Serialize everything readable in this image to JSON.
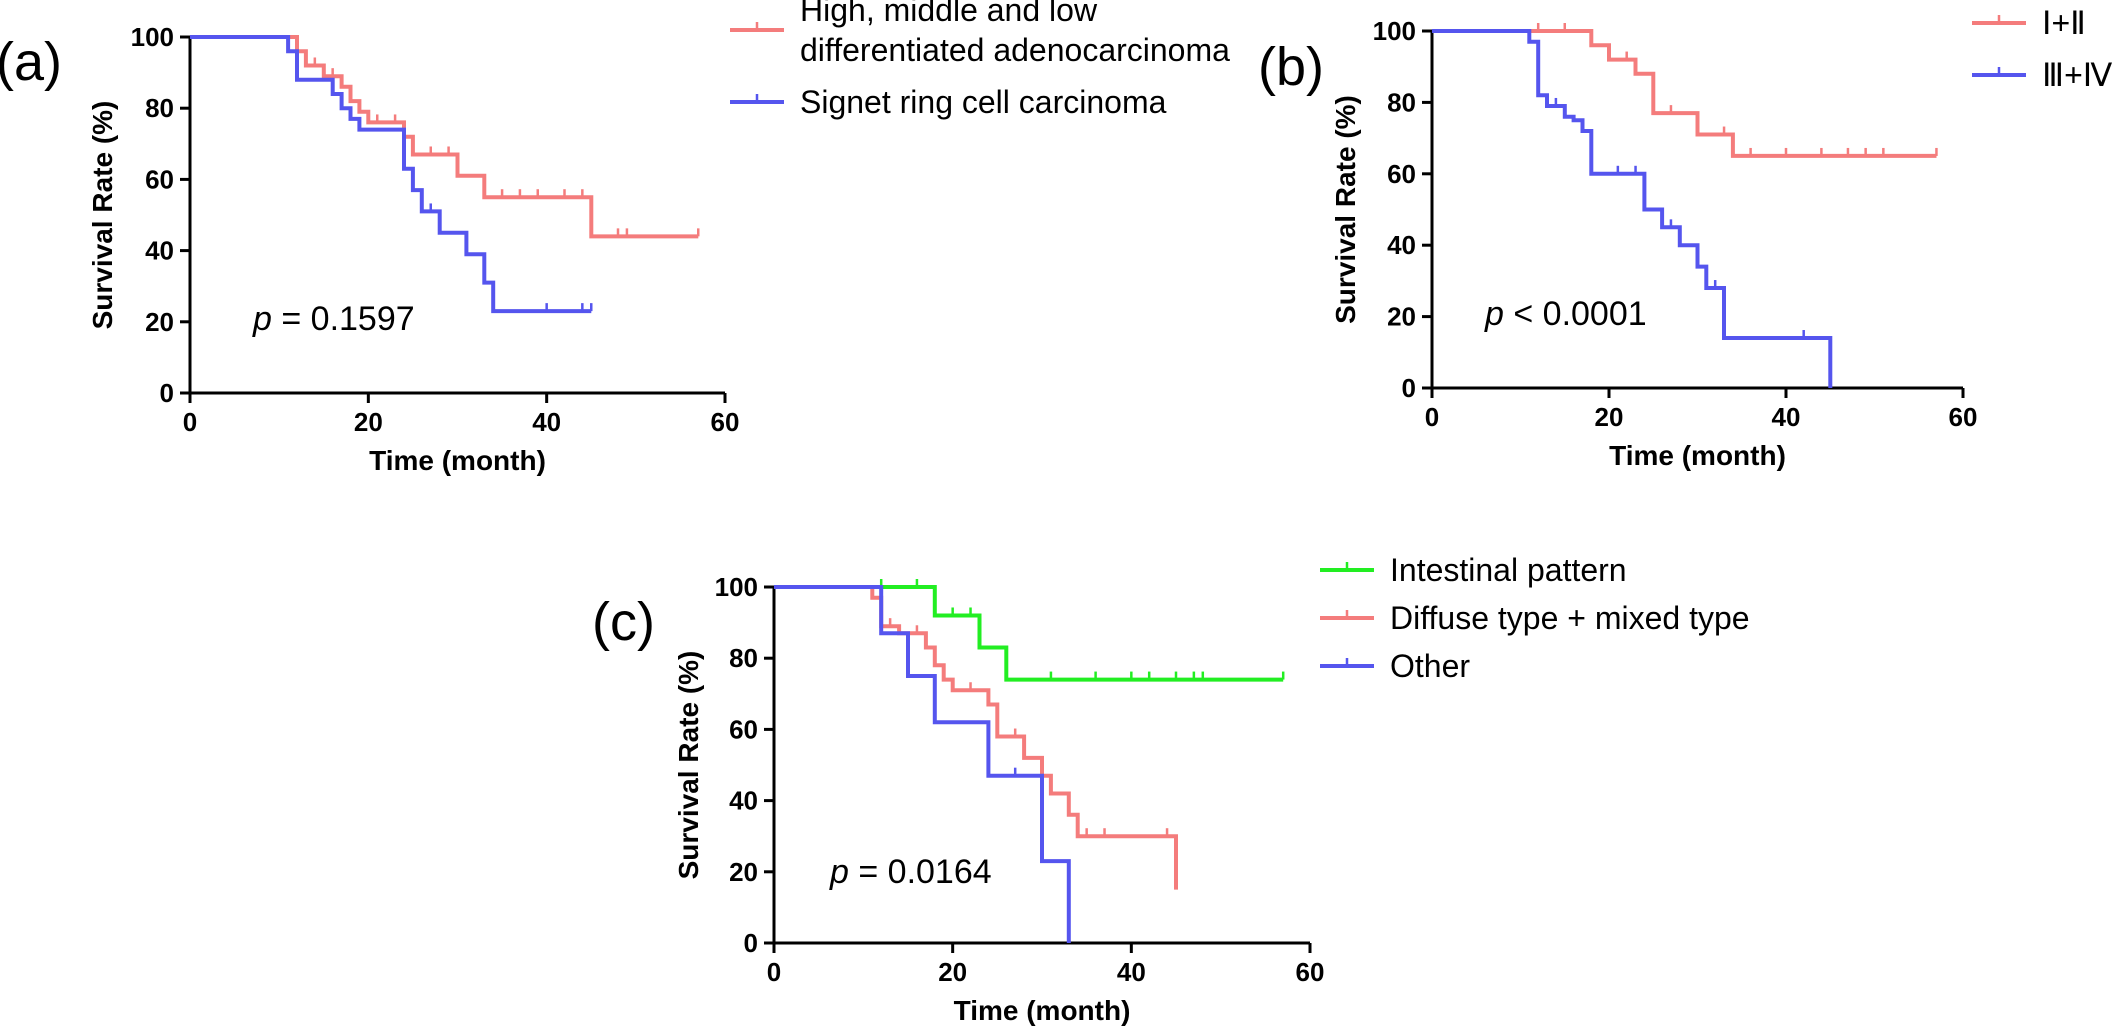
{
  "colors": {
    "red": "#f47c7c",
    "blue": "#5555ee",
    "green": "#22ee22",
    "axis": "#000000"
  },
  "chart_data": [
    {
      "type": "line",
      "panel_label": "(a)",
      "xlabel": "Time (month)",
      "ylabel": "Survival Rate (%)",
      "xlim": [
        0,
        60
      ],
      "ylim": [
        0,
        100
      ],
      "x_ticks": [
        "0",
        "20",
        "40",
        "60"
      ],
      "y_ticks": [
        "0",
        "20",
        "40",
        "60",
        "80",
        "100"
      ],
      "p_symbol": "p",
      "p_rest": " = 0.1597",
      "legend": {
        "placement": "right"
      },
      "series": [
        {
          "name_lines": [
            "High, middle and low",
            "differentiated adenocarcinoma"
          ],
          "color": "red",
          "steps": [
            [
              0,
              100
            ],
            [
              12,
              100
            ],
            [
              12,
              96
            ],
            [
              13,
              96
            ],
            [
              13,
              92
            ],
            [
              15,
              92
            ],
            [
              15,
              89
            ],
            [
              17,
              89
            ],
            [
              17,
              86
            ],
            [
              18,
              86
            ],
            [
              18,
              82
            ],
            [
              19,
              82
            ],
            [
              19,
              79
            ],
            [
              20,
              79
            ],
            [
              20,
              76
            ],
            [
              24,
              76
            ],
            [
              24,
              72
            ],
            [
              25,
              72
            ],
            [
              25,
              67
            ],
            [
              30,
              67
            ],
            [
              30,
              61
            ],
            [
              33,
              61
            ],
            [
              33,
              55
            ],
            [
              45,
              55
            ],
            [
              45,
              44
            ],
            [
              57,
              44
            ]
          ],
          "censors": [
            [
              14,
              92
            ],
            [
              16,
              89
            ],
            [
              21,
              76
            ],
            [
              23,
              76
            ],
            [
              27,
              67
            ],
            [
              29,
              67
            ],
            [
              35,
              55
            ],
            [
              37,
              55
            ],
            [
              39,
              55
            ],
            [
              42,
              55
            ],
            [
              44,
              55
            ],
            [
              48,
              44
            ],
            [
              49,
              44
            ],
            [
              57,
              44
            ]
          ]
        },
        {
          "name_lines": [
            "Signet ring cell carcinoma"
          ],
          "color": "blue",
          "steps": [
            [
              0,
              100
            ],
            [
              11,
              100
            ],
            [
              11,
              96
            ],
            [
              12,
              96
            ],
            [
              12,
              88
            ],
            [
              16,
              88
            ],
            [
              16,
              84
            ],
            [
              17,
              84
            ],
            [
              17,
              80
            ],
            [
              18,
              80
            ],
            [
              18,
              77
            ],
            [
              19,
              77
            ],
            [
              19,
              74
            ],
            [
              24,
              74
            ],
            [
              24,
              63
            ],
            [
              25,
              63
            ],
            [
              25,
              57
            ],
            [
              26,
              57
            ],
            [
              26,
              51
            ],
            [
              28,
              51
            ],
            [
              28,
              45
            ],
            [
              31,
              45
            ],
            [
              31,
              39
            ],
            [
              33,
              39
            ],
            [
              33,
              31
            ],
            [
              34,
              31
            ],
            [
              34,
              23
            ],
            [
              45,
              23
            ]
          ],
          "censors": [
            [
              27,
              51
            ],
            [
              40,
              23
            ],
            [
              44,
              23
            ],
            [
              45,
              23
            ]
          ]
        }
      ]
    },
    {
      "type": "line",
      "panel_label": "(b)",
      "xlabel": "Time (month)",
      "ylabel": "Survival Rate (%)",
      "xlim": [
        0,
        60
      ],
      "ylim": [
        0,
        100
      ],
      "x_ticks": [
        "0",
        "20",
        "40",
        "60"
      ],
      "y_ticks": [
        "0",
        "20",
        "40",
        "60",
        "80",
        "100"
      ],
      "p_symbol": "p",
      "p_rest": " < 0.0001",
      "legend": {
        "placement": "top-right"
      },
      "series": [
        {
          "name_lines": [
            "Ⅰ+Ⅱ"
          ],
          "color": "red",
          "steps": [
            [
              0,
              100
            ],
            [
              18,
              100
            ],
            [
              18,
              96
            ],
            [
              20,
              96
            ],
            [
              20,
              92
            ],
            [
              23,
              92
            ],
            [
              23,
              88
            ],
            [
              25,
              88
            ],
            [
              25,
              77
            ],
            [
              30,
              77
            ],
            [
              30,
              71
            ],
            [
              34,
              71
            ],
            [
              34,
              65
            ],
            [
              57,
              65
            ]
          ],
          "censors": [
            [
              12,
              100
            ],
            [
              15,
              100
            ],
            [
              22,
              92
            ],
            [
              27,
              77
            ],
            [
              33,
              71
            ],
            [
              36,
              65
            ],
            [
              40,
              65
            ],
            [
              44,
              65
            ],
            [
              47,
              65
            ],
            [
              49,
              65
            ],
            [
              51,
              65
            ],
            [
              57,
              65
            ]
          ]
        },
        {
          "name_lines": [
            "Ⅲ+Ⅳ"
          ],
          "color": "blue",
          "steps": [
            [
              0,
              100
            ],
            [
              11,
              100
            ],
            [
              11,
              97
            ],
            [
              12,
              97
            ],
            [
              12,
              82
            ],
            [
              13,
              82
            ],
            [
              13,
              79
            ],
            [
              15,
              79
            ],
            [
              15,
              76
            ],
            [
              16,
              76
            ],
            [
              16,
              75
            ],
            [
              17,
              75
            ],
            [
              17,
              72
            ],
            [
              18,
              72
            ],
            [
              18,
              60
            ],
            [
              24,
              60
            ],
            [
              24,
              50
            ],
            [
              26,
              50
            ],
            [
              26,
              45
            ],
            [
              28,
              45
            ],
            [
              28,
              40
            ],
            [
              30,
              40
            ],
            [
              30,
              34
            ],
            [
              31,
              34
            ],
            [
              31,
              28
            ],
            [
              33,
              28
            ],
            [
              33,
              14
            ],
            [
              45,
              14
            ],
            [
              45,
              0
            ]
          ],
          "censors": [
            [
              14,
              79
            ],
            [
              21,
              60
            ],
            [
              23,
              60
            ],
            [
              27,
              45
            ],
            [
              32,
              28
            ],
            [
              42,
              14
            ]
          ]
        }
      ]
    },
    {
      "type": "line",
      "panel_label": "(c)",
      "xlabel": "Time (month)",
      "ylabel": "Survival Rate (%)",
      "xlim": [
        0,
        60
      ],
      "ylim": [
        0,
        100
      ],
      "x_ticks": [
        "0",
        "20",
        "40",
        "60"
      ],
      "y_ticks": [
        "0",
        "20",
        "40",
        "60",
        "80",
        "100"
      ],
      "p_symbol": "p",
      "p_rest": " = 0.0164",
      "legend": {
        "placement": "top-right"
      },
      "series": [
        {
          "name_lines": [
            "Intestinal pattern"
          ],
          "color": "green",
          "steps": [
            [
              0,
              100
            ],
            [
              18,
              100
            ],
            [
              18,
              92
            ],
            [
              23,
              92
            ],
            [
              23,
              83
            ],
            [
              26,
              83
            ],
            [
              26,
              74
            ],
            [
              57,
              74
            ]
          ],
          "censors": [
            [
              12,
              100
            ],
            [
              16,
              100
            ],
            [
              20,
              92
            ],
            [
              22,
              92
            ],
            [
              31,
              74
            ],
            [
              36,
              74
            ],
            [
              40,
              74
            ],
            [
              42,
              74
            ],
            [
              45,
              74
            ],
            [
              47,
              74
            ],
            [
              48,
              74
            ],
            [
              57,
              74
            ]
          ]
        },
        {
          "name_lines": [
            "Diffuse type + mixed type"
          ],
          "color": "red",
          "steps": [
            [
              0,
              100
            ],
            [
              11,
              100
            ],
            [
              11,
              97
            ],
            [
              12,
              97
            ],
            [
              12,
              89
            ],
            [
              14,
              89
            ],
            [
              14,
              87
            ],
            [
              17,
              87
            ],
            [
              17,
              83
            ],
            [
              18,
              83
            ],
            [
              18,
              78
            ],
            [
              19,
              78
            ],
            [
              19,
              74
            ],
            [
              20,
              74
            ],
            [
              20,
              71
            ],
            [
              24,
              71
            ],
            [
              24,
              67
            ],
            [
              25,
              67
            ],
            [
              25,
              58
            ],
            [
              28,
              58
            ],
            [
              28,
              52
            ],
            [
              30,
              52
            ],
            [
              30,
              47
            ],
            [
              31,
              47
            ],
            [
              31,
              42
            ],
            [
              33,
              42
            ],
            [
              33,
              36
            ],
            [
              34,
              36
            ],
            [
              34,
              30
            ],
            [
              45,
              30
            ],
            [
              45,
              15
            ]
          ],
          "censors": [
            [
              13,
              89
            ],
            [
              16,
              87
            ],
            [
              22,
              71
            ],
            [
              27,
              58
            ],
            [
              35,
              30
            ],
            [
              37,
              30
            ],
            [
              44,
              30
            ]
          ]
        },
        {
          "name_lines": [
            "Other"
          ],
          "color": "blue",
          "steps": [
            [
              0,
              100
            ],
            [
              12,
              100
            ],
            [
              12,
              87
            ],
            [
              15,
              87
            ],
            [
              15,
              75
            ],
            [
              18,
              75
            ],
            [
              18,
              62
            ],
            [
              24,
              62
            ],
            [
              24,
              47
            ],
            [
              30,
              47
            ],
            [
              30,
              23
            ],
            [
              33,
              23
            ],
            [
              33,
              0
            ]
          ],
          "censors": [
            [
              27,
              47
            ]
          ]
        }
      ]
    }
  ]
}
